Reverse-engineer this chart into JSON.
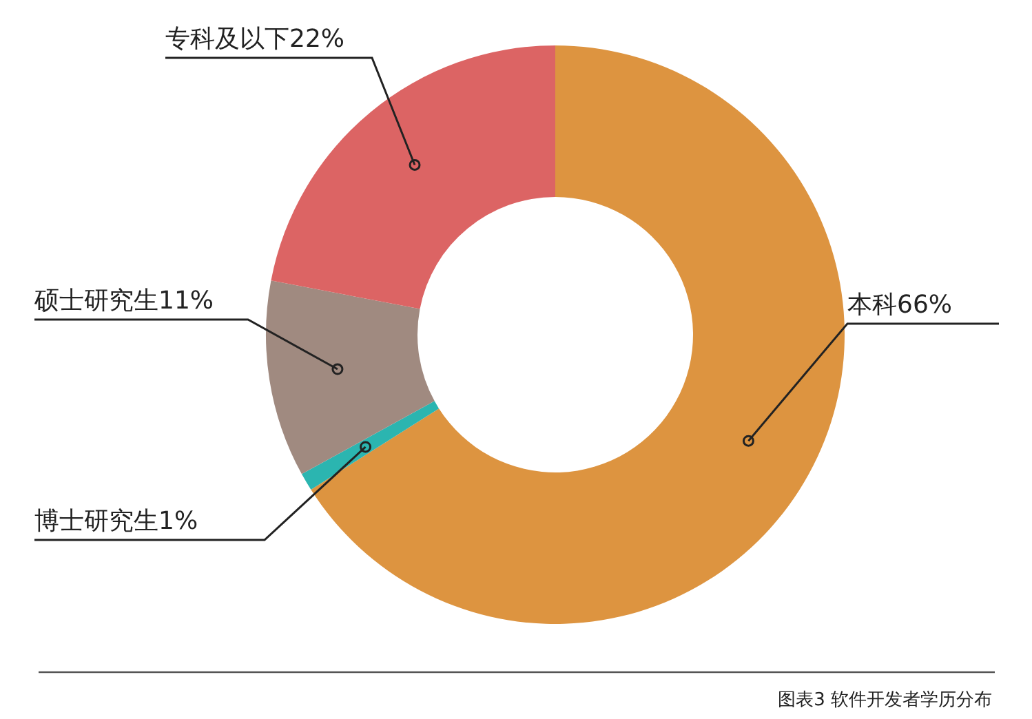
{
  "chart_data": {
    "type": "donut",
    "categories": [
      "本科",
      "博士研究生",
      "硕士研究生",
      "专科及以下"
    ],
    "values": [
      66,
      1,
      11,
      22
    ],
    "value_labels": [
      "66%",
      "1%",
      "11%",
      "22%"
    ],
    "colors": [
      "#dd9440",
      "#2bb5b0",
      "#a08a80",
      "#dc6464"
    ],
    "legend": false,
    "annotations": [
      "图表3 软件开发者学历分布"
    ]
  }
}
